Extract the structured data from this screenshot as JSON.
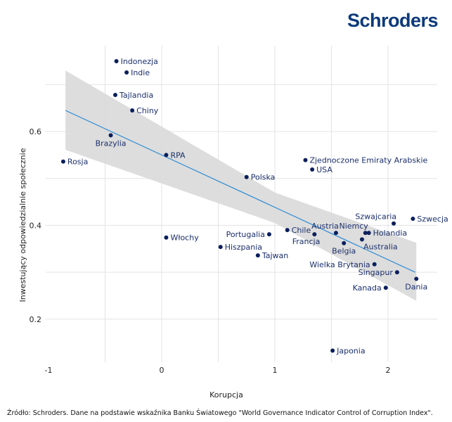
{
  "logo": "Schroders",
  "source": "Źródło: Schroders. Dane na podstawie wskaźnika Banku Światowego \"World Governance Indicator Control of Corruption Index\".",
  "chart_data": {
    "type": "scatter",
    "xlabel": "Korupcja",
    "ylabel": "Inwestujący odpowiedzialnie społecznie",
    "xlim": [
      -1,
      2.5
    ],
    "ylim": [
      0.1,
      0.78
    ],
    "x_ticks": [
      -1,
      0,
      1,
      2
    ],
    "x_tick_labels": [
      "-1",
      "0",
      "1",
      "2"
    ],
    "y_ticks": [
      0.2,
      0.4,
      0.6
    ],
    "y_tick_labels": [
      "0.2",
      "0.4",
      "0.6"
    ],
    "grid": true,
    "colors": {
      "points": "#0a1f5c",
      "labels": "#1b2f6b",
      "trend": "#2a8ad4",
      "band": "#d9d9d9"
    },
    "trend_line": {
      "x": [
        -0.85,
        2.24
      ],
      "y": [
        0.645,
        0.3
      ]
    },
    "confidence_band": {
      "x": [
        -0.85,
        1.0,
        2.25
      ],
      "upper": [
        0.73,
        0.47,
        0.363
      ],
      "lower": [
        0.561,
        0.405,
        0.239
      ]
    },
    "points": [
      {
        "label": "Indonezja",
        "x": -0.4,
        "y": 0.75,
        "label_position": "right"
      },
      {
        "label": "Indie",
        "x": -0.31,
        "y": 0.726,
        "label_position": "right"
      },
      {
        "label": "Tajlandia",
        "x": -0.41,
        "y": 0.678,
        "label_position": "right"
      },
      {
        "label": "Chiny",
        "x": -0.26,
        "y": 0.645,
        "label_position": "right"
      },
      {
        "label": "Brazylia",
        "x": -0.45,
        "y": 0.592,
        "label_position": "below"
      },
      {
        "label": "Rosja",
        "x": -0.87,
        "y": 0.536,
        "label_position": "right"
      },
      {
        "label": "RPA",
        "x": 0.04,
        "y": 0.55,
        "label_position": "right"
      },
      {
        "label": "Włochy",
        "x": 0.04,
        "y": 0.374,
        "label_position": "right"
      },
      {
        "label": "Polska",
        "x": 0.75,
        "y": 0.503,
        "label_position": "right"
      },
      {
        "label": "Zjednoczone Emiraty Arabskie",
        "x": 1.27,
        "y": 0.539,
        "label_position": "right"
      },
      {
        "label": "USA",
        "x": 1.33,
        "y": 0.519,
        "label_position": "right"
      },
      {
        "label": "Portugalia",
        "x": 0.95,
        "y": 0.381,
        "label_position": "left"
      },
      {
        "label": "Chile",
        "x": 1.11,
        "y": 0.39,
        "label_position": "right"
      },
      {
        "label": "Hiszpania",
        "x": 0.52,
        "y": 0.354,
        "label_position": "right"
      },
      {
        "label": "Tajwan",
        "x": 0.85,
        "y": 0.336,
        "label_position": "right"
      },
      {
        "label": "Austria",
        "x": 1.54,
        "y": 0.384,
        "label_position": "above-left"
      },
      {
        "label": "Francja",
        "x": 1.35,
        "y": 0.381,
        "label_position": "below-left"
      },
      {
        "label": "Belgia",
        "x": 1.61,
        "y": 0.362,
        "label_position": "below"
      },
      {
        "label": "Niemcy",
        "x": 1.8,
        "y": 0.384,
        "label_position": "above-left"
      },
      {
        "label": "Holandia",
        "x": 1.83,
        "y": 0.384,
        "label_position": "right"
      },
      {
        "label": "Australia",
        "x": 1.77,
        "y": 0.37,
        "label_position": "below-right"
      },
      {
        "label": "Szwajcaria",
        "x": 2.05,
        "y": 0.404,
        "label_position": "above-left"
      },
      {
        "label": "Szwecja",
        "x": 2.22,
        "y": 0.414,
        "label_position": "right"
      },
      {
        "label": "Wielka Brytania",
        "x": 1.88,
        "y": 0.317,
        "label_position": "left"
      },
      {
        "label": "Singapur",
        "x": 2.08,
        "y": 0.3,
        "label_position": "left"
      },
      {
        "label": "Kanada",
        "x": 1.98,
        "y": 0.267,
        "label_position": "left"
      },
      {
        "label": "Dania",
        "x": 2.25,
        "y": 0.286,
        "label_position": "below"
      },
      {
        "label": "Japonia",
        "x": 1.51,
        "y": 0.133,
        "label_position": "right"
      }
    ]
  }
}
